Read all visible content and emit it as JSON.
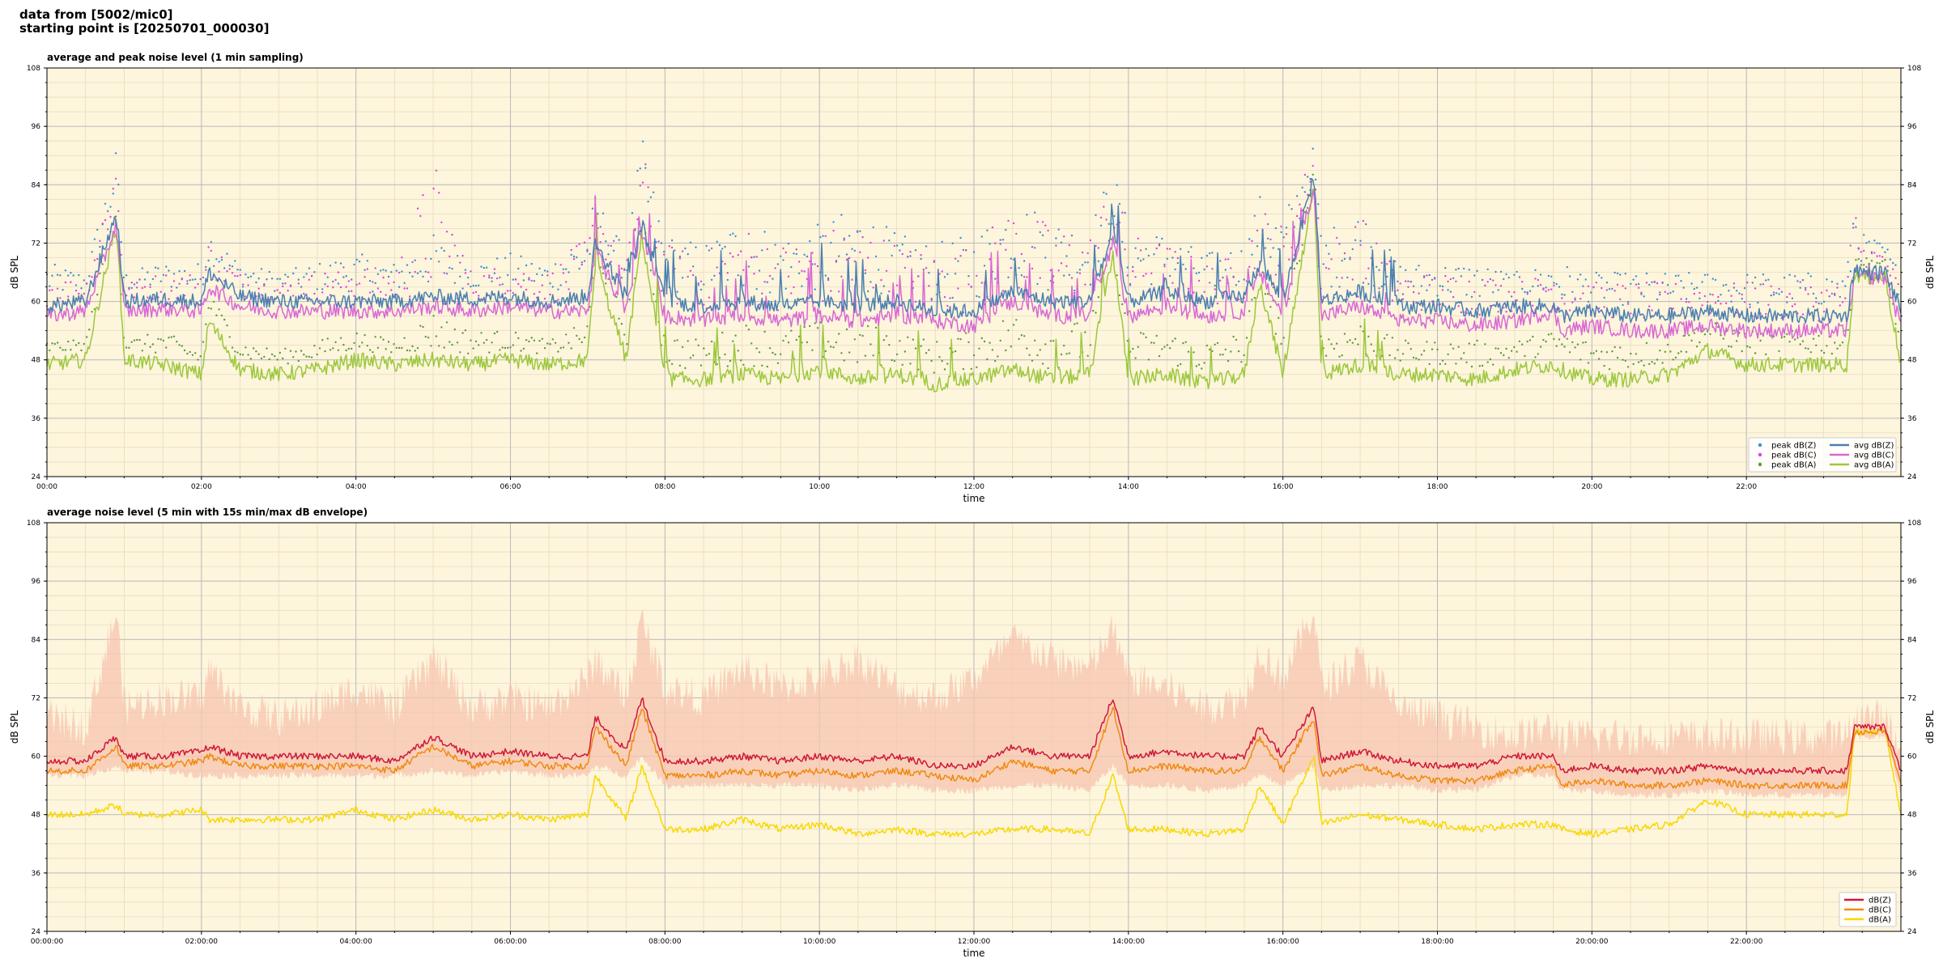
{
  "header": {
    "line1": "data from [5002/mic0]",
    "line2": "starting point is [20250701_000030]"
  },
  "colors": {
    "plot_bg": "#fdf5dc",
    "grid_major": "#b8b8b8",
    "grid_minor": "#e6dcc0",
    "avg_z": "#4a7fb0",
    "avg_c": "#d868d4",
    "avg_a": "#9cc83c",
    "peak_z": "#3a8fd0",
    "peak_c": "#e040e0",
    "peak_a": "#5a9a3c",
    "dbz": "#d01838",
    "dbc": "#f08a10",
    "dba": "#f8d800",
    "envelope": "#f7c4b0"
  },
  "chart_data": [
    {
      "type": "line",
      "title": "average and peak noise level (1 min sampling)",
      "xlabel": "time",
      "ylabel": "dB SPL",
      "ylim": [
        24,
        108
      ],
      "xlim_hours": [
        0,
        24
      ],
      "yticks": [
        24,
        36,
        48,
        60,
        72,
        84,
        96,
        108
      ],
      "xtick_labels": [
        "00:00",
        "02:00",
        "04:00",
        "06:00",
        "08:00",
        "10:00",
        "12:00",
        "14:00",
        "16:00",
        "18:00",
        "20:00",
        "22:00"
      ],
      "grid": true,
      "legend_position": "lower-right",
      "legend": [
        "peak dB(Z)",
        "peak dB(C)",
        "peak dB(A)",
        "avg dB(Z)",
        "avg dB(C)",
        "avg dB(A)"
      ],
      "x": [
        0,
        0.5,
        0.9,
        1.0,
        1.5,
        2.0,
        2.1,
        2.5,
        3.0,
        3.5,
        4.0,
        4.5,
        5.0,
        5.5,
        6.0,
        6.5,
        7.0,
        7.1,
        7.5,
        7.7,
        8.0,
        8.5,
        9.0,
        9.5,
        10.0,
        10.5,
        11.0,
        11.5,
        12.0,
        12.5,
        13.0,
        13.5,
        13.8,
        14.0,
        14.5,
        15.0,
        15.5,
        15.7,
        16.0,
        16.4,
        16.5,
        17.0,
        17.5,
        18.0,
        18.5,
        19.0,
        19.5,
        19.6,
        20.0,
        20.5,
        21.0,
        21.5,
        22.0,
        22.5,
        23.0,
        23.3,
        23.4,
        23.5,
        23.8,
        24.0
      ],
      "series": [
        {
          "name": "avg dB(Z)",
          "values": [
            59,
            60,
            78,
            60,
            60.5,
            60,
            66,
            61,
            60,
            60,
            60,
            60,
            61,
            60.5,
            61,
            60,
            61,
            72,
            61,
            76,
            60,
            59,
            60,
            59,
            60,
            59,
            60,
            58,
            58,
            62,
            60,
            60,
            74,
            60,
            62,
            60,
            61,
            68,
            60,
            86,
            60,
            62,
            59,
            59,
            58,
            59,
            59,
            57,
            58,
            57,
            57,
            58,
            57,
            57,
            57,
            57,
            67,
            66,
            66,
            58
          ]
        },
        {
          "name": "avg dB(C)",
          "values": [
            57,
            58,
            76,
            58,
            58.5,
            58,
            63,
            59,
            58,
            58,
            58,
            58,
            59,
            58,
            59,
            58,
            58,
            70,
            58,
            74,
            57,
            56,
            57,
            56,
            57,
            56,
            57,
            56,
            55,
            60,
            57,
            57,
            72,
            57,
            59,
            57,
            58,
            66,
            57,
            84,
            57,
            59,
            56,
            56,
            55,
            56,
            58,
            54,
            55,
            54,
            54,
            55,
            54,
            54,
            54,
            54,
            66,
            65,
            65,
            55
          ]
        },
        {
          "name": "avg dB(A)",
          "values": [
            47,
            48,
            76,
            48,
            47,
            45,
            56,
            46,
            45,
            46,
            48,
            47,
            48,
            47,
            48,
            47,
            48,
            68,
            48,
            74,
            44,
            44,
            45,
            44,
            46,
            44,
            45,
            43,
            44,
            46,
            44,
            45,
            70,
            44,
            45,
            43,
            45,
            64,
            45,
            84,
            45,
            47,
            45,
            45,
            44,
            46,
            47,
            46,
            44,
            44,
            45,
            50,
            47,
            47,
            47,
            47,
            66,
            65,
            65,
            47
          ]
        }
      ],
      "peaks_note_values": {
        "peak dB(Z)": [
          66,
          64,
          90,
          64,
          66,
          66,
          73,
          66,
          64,
          66,
          68,
          66,
          72,
          66,
          68,
          66,
          74,
          80,
          68,
          92,
          72,
          70,
          76,
          72,
          74,
          78,
          72,
          70,
          72,
          80,
          76,
          74,
          86,
          74,
          72,
          68,
          70,
          80,
          76,
          90,
          72,
          78,
          66,
          66,
          66,
          64,
          66,
          66,
          64,
          64,
          64,
          64,
          64,
          64,
          64,
          64,
          82,
          72,
          70,
          64
        ],
        "peak dB(C)": [
          64,
          62,
          89,
          62,
          64,
          64,
          71,
          64,
          62,
          64,
          66,
          64,
          88,
          64,
          66,
          64,
          72,
          78,
          66,
          90,
          70,
          68,
          74,
          70,
          72,
          76,
          70,
          68,
          70,
          78,
          74,
          72,
          84,
          72,
          70,
          66,
          68,
          78,
          74,
          89,
          70,
          76,
          64,
          64,
          64,
          62,
          64,
          64,
          62,
          62,
          62,
          62,
          62,
          62,
          62,
          62,
          80,
          70,
          68,
          62
        ],
        "peak dB(A)": [
          50,
          50,
          80,
          50,
          52,
          48,
          60,
          50,
          48,
          50,
          52,
          50,
          56,
          52,
          52,
          50,
          54,
          70,
          54,
          76,
          52,
          50,
          54,
          52,
          54,
          54,
          52,
          50,
          52,
          56,
          54,
          54,
          72,
          52,
          52,
          50,
          52,
          66,
          54,
          86,
          52,
          54,
          50,
          50,
          50,
          50,
          52,
          52,
          50,
          50,
          50,
          54,
          52,
          52,
          52,
          52,
          68,
          66,
          66,
          50
        ]
      }
    },
    {
      "type": "line",
      "title": "average noise level (5 min with 15s min/max dB envelope)",
      "xlabel": "time",
      "ylabel": "dB SPL",
      "ylim": [
        24,
        108
      ],
      "xlim_hours": [
        0,
        24
      ],
      "yticks": [
        24,
        36,
        48,
        60,
        72,
        84,
        96,
        108
      ],
      "xtick_labels": [
        "00:00:00",
        "02:00:00",
        "04:00:00",
        "06:00:00",
        "08:00:00",
        "10:00:00",
        "12:00:00",
        "14:00:00",
        "16:00:00",
        "18:00:00",
        "20:00:00",
        "22:00:00"
      ],
      "grid": true,
      "legend_position": "lower-right",
      "legend": [
        "dB(Z)",
        "dB(C)",
        "dB(A)"
      ],
      "x": [
        0,
        0.5,
        0.9,
        1.0,
        1.5,
        2.0,
        2.1,
        2.5,
        3.0,
        3.5,
        4.0,
        4.5,
        5.0,
        5.5,
        6.0,
        6.5,
        7.0,
        7.1,
        7.5,
        7.7,
        8.0,
        8.5,
        9.0,
        9.5,
        10.0,
        10.5,
        11.0,
        11.5,
        12.0,
        12.5,
        13.0,
        13.5,
        13.8,
        14.0,
        14.5,
        15.0,
        15.5,
        15.7,
        16.0,
        16.4,
        16.5,
        17.0,
        17.5,
        18.0,
        18.5,
        19.0,
        19.5,
        19.6,
        20.0,
        20.5,
        21.0,
        21.5,
        22.0,
        22.5,
        23.0,
        23.3,
        23.4,
        23.5,
        23.8,
        24.0
      ],
      "series": [
        {
          "name": "dB(Z)",
          "values": [
            59,
            59,
            64,
            60,
            60,
            61,
            62,
            60,
            60,
            60,
            60,
            59,
            64,
            60,
            61,
            60,
            60,
            68,
            61,
            72,
            59,
            59,
            60,
            59,
            60,
            59,
            60,
            58,
            58,
            62,
            60,
            60,
            72,
            60,
            61,
            60,
            60,
            66,
            60,
            70,
            59,
            61,
            59,
            58,
            58,
            60,
            60,
            57,
            58,
            57,
            57,
            58,
            57,
            57,
            57,
            57,
            66,
            66,
            66,
            57
          ]
        },
        {
          "name": "dB(C)",
          "values": [
            57,
            57,
            62,
            58,
            58,
            59,
            60,
            58,
            58,
            58,
            58,
            57,
            62,
            58,
            59,
            58,
            58,
            66,
            58,
            70,
            56,
            56,
            57,
            56,
            57,
            56,
            57,
            56,
            55,
            59,
            57,
            57,
            70,
            57,
            58,
            57,
            57,
            64,
            57,
            68,
            56,
            58,
            56,
            55,
            55,
            57,
            58,
            54,
            55,
            54,
            54,
            55,
            54,
            54,
            54,
            54,
            65,
            65,
            65,
            54
          ]
        },
        {
          "name": "dB(A)",
          "values": [
            48,
            48,
            50,
            48,
            48,
            49,
            47,
            47,
            47,
            47,
            49,
            47,
            49,
            47,
            48,
            47,
            48,
            56,
            47,
            58,
            45,
            45,
            47,
            45,
            46,
            44,
            45,
            44,
            44,
            45,
            45,
            44,
            56,
            45,
            45,
            44,
            45,
            54,
            46,
            60,
            46,
            48,
            47,
            46,
            45,
            46,
            46,
            45,
            44,
            45,
            46,
            51,
            48,
            48,
            48,
            48,
            65,
            65,
            65,
            48
          ]
        }
      ],
      "envelope_max": [
        68,
        66,
        90,
        70,
        72,
        72,
        78,
        70,
        68,
        70,
        74,
        70,
        80,
        70,
        72,
        70,
        76,
        80,
        72,
        88,
        74,
        72,
        78,
        74,
        76,
        80,
        74,
        72,
        76,
        84,
        80,
        78,
        86,
        76,
        74,
        70,
        72,
        82,
        76,
        90,
        74,
        80,
        70,
        68,
        66,
        64,
        66,
        64,
        64,
        64,
        64,
        64,
        64,
        64,
        64,
        64,
        68,
        68,
        68,
        60
      ],
      "envelope_min": [
        56,
        56,
        58,
        57,
        57,
        56,
        56,
        56,
        56,
        56,
        56,
        56,
        57,
        56,
        57,
        56,
        56,
        58,
        56,
        60,
        54,
        54,
        54,
        54,
        54,
        53,
        54,
        53,
        53,
        54,
        54,
        53,
        58,
        54,
        54,
        53,
        54,
        56,
        54,
        58,
        53,
        54,
        54,
        53,
        53,
        56,
        56,
        53,
        53,
        52,
        52,
        53,
        52,
        52,
        52,
        52,
        64,
        64,
        64,
        52
      ]
    }
  ]
}
